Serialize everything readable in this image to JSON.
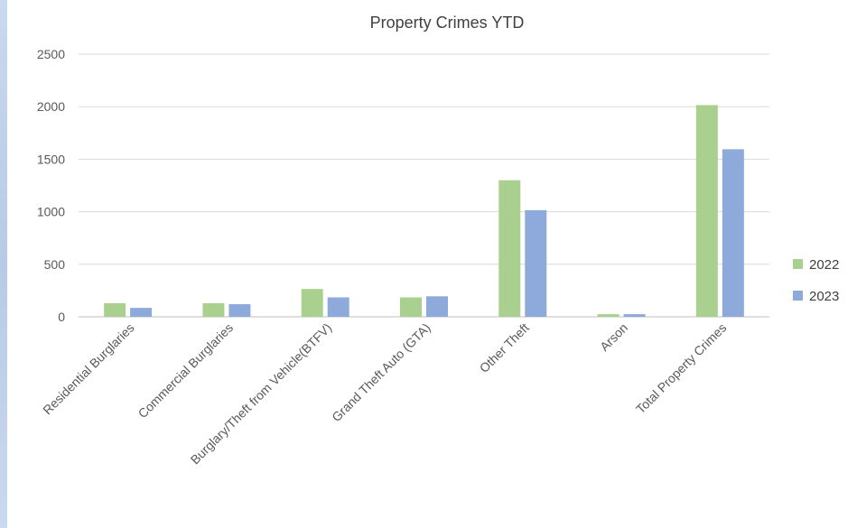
{
  "chart_data": {
    "type": "bar",
    "title": "Property Crimes YTD",
    "categories": [
      "Residential Burglaries",
      "Commercial Burglaries",
      "Burglary/Theft from Vehicle(BTFV)",
      "Grand Theft Auto (GTA)",
      "Other Theft",
      "Arson",
      "Total Property Crimes"
    ],
    "series": [
      {
        "name": "2022",
        "color": "#a9d08e",
        "values": [
          130,
          130,
          265,
          185,
          1300,
          25,
          2015
        ]
      },
      {
        "name": "2023",
        "color": "#8eaadb",
        "values": [
          85,
          120,
          185,
          195,
          1015,
          25,
          1595
        ]
      }
    ],
    "xlabel": "",
    "ylabel": "",
    "ylim": [
      0,
      2500
    ],
    "yticks": [
      0,
      500,
      1000,
      1500,
      2000,
      2500
    ],
    "grid": true,
    "legend_position": "right"
  }
}
